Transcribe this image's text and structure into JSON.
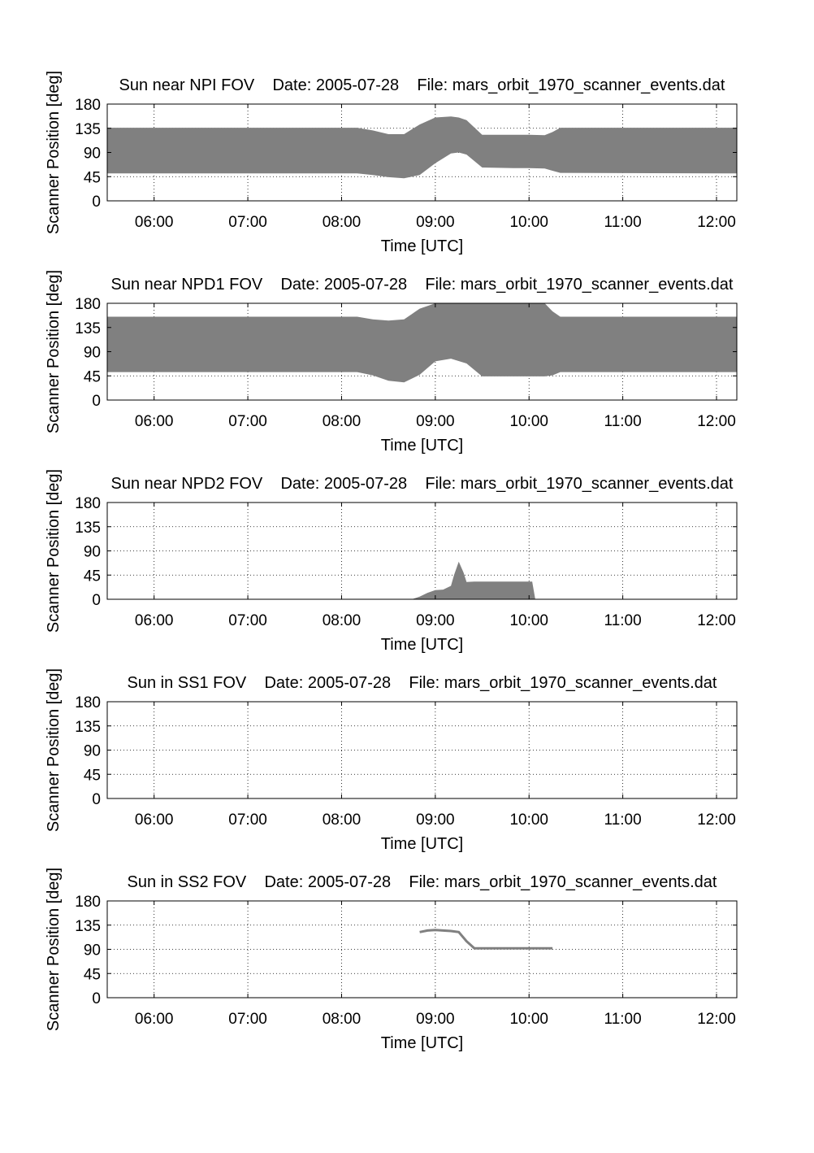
{
  "chart_data": [
    {
      "type": "area",
      "title": "Sun near NPI FOV    Date: 2005-07-28    File: mars_orbit_1970_scanner_events.dat",
      "xlabel": "Time [UTC]",
      "ylabel": "Scanner Position [deg]",
      "xticks": [
        "06:00",
        "07:00",
        "08:00",
        "09:00",
        "10:00",
        "11:00",
        "12:00"
      ],
      "yticks": [
        0,
        45,
        90,
        135,
        180
      ],
      "xlim": [
        "05:30",
        "12:13"
      ],
      "ylim": [
        0,
        180
      ],
      "grid": true,
      "series_color": "#808080",
      "series": [
        {
          "x": [
            "05:30",
            "08:10",
            "08:20",
            "08:30",
            "08:40",
            "08:50",
            "09:00",
            "09:10",
            "09:15",
            "09:20",
            "09:30",
            "09:50",
            "10:00",
            "10:10",
            "10:15",
            "10:20",
            "12:13"
          ],
          "lower": [
            51,
            51,
            48,
            44,
            42,
            48,
            70,
            88,
            90,
            86,
            62,
            61,
            61,
            60,
            56,
            52,
            51
          ],
          "upper": [
            136,
            136,
            131,
            124,
            124,
            142,
            155,
            157,
            155,
            150,
            123,
            123,
            123,
            122,
            128,
            136,
            136
          ]
        }
      ]
    },
    {
      "type": "area",
      "title": "Sun near NPD1 FOV    Date: 2005-07-28    File: mars_orbit_1970_scanner_events.dat",
      "xlabel": "Time [UTC]",
      "ylabel": "Scanner Position [deg]",
      "xticks": [
        "06:00",
        "07:00",
        "08:00",
        "09:00",
        "10:00",
        "11:00",
        "12:00"
      ],
      "yticks": [
        0,
        45,
        90,
        135,
        180
      ],
      "xlim": [
        "05:30",
        "12:13"
      ],
      "ylim": [
        0,
        180
      ],
      "grid": true,
      "series_color": "#808080",
      "series": [
        {
          "x": [
            "05:30",
            "08:10",
            "08:20",
            "08:30",
            "08:40",
            "08:50",
            "09:00",
            "09:10",
            "09:20",
            "09:30",
            "09:50",
            "10:00",
            "10:10",
            "10:15",
            "10:20",
            "12:13"
          ],
          "lower": [
            52,
            52,
            46,
            36,
            33,
            47,
            72,
            77,
            68,
            44,
            44,
            44,
            44,
            46,
            52,
            52
          ],
          "upper": [
            155,
            155,
            150,
            148,
            150,
            170,
            180,
            180,
            180,
            180,
            180,
            180,
            180,
            165,
            155,
            155
          ]
        }
      ]
    },
    {
      "type": "area",
      "title": "Sun near NPD2 FOV    Date: 2005-07-28    File: mars_orbit_1970_scanner_events.dat",
      "xlabel": "Time [UTC]",
      "ylabel": "Scanner Position [deg]",
      "xticks": [
        "06:00",
        "07:00",
        "08:00",
        "09:00",
        "10:00",
        "11:00",
        "12:00"
      ],
      "yticks": [
        0,
        45,
        90,
        135,
        180
      ],
      "xlim": [
        "05:30",
        "12:13"
      ],
      "ylim": [
        0,
        180
      ],
      "grid": true,
      "series_color": "#808080",
      "series": [
        {
          "x": [
            "08:45",
            "08:50",
            "08:55",
            "09:00",
            "09:05",
            "09:10",
            "09:12",
            "09:15",
            "09:18",
            "09:20",
            "09:25",
            "09:30",
            "10:00",
            "10:02",
            "10:04"
          ],
          "lower": [
            0,
            0,
            0,
            0,
            0,
            0,
            0,
            0,
            0,
            0,
            0,
            0,
            0,
            0,
            0
          ],
          "upper": [
            0,
            5,
            12,
            17,
            18,
            25,
            45,
            70,
            50,
            32,
            33,
            33,
            33,
            33,
            0
          ]
        }
      ]
    },
    {
      "type": "area",
      "title": "Sun in SS1 FOV    Date: 2005-07-28    File: mars_orbit_1970_scanner_events.dat",
      "xlabel": "Time [UTC]",
      "ylabel": "Scanner Position [deg]",
      "xticks": [
        "06:00",
        "07:00",
        "08:00",
        "09:00",
        "10:00",
        "11:00",
        "12:00"
      ],
      "yticks": [
        0,
        45,
        90,
        135,
        180
      ],
      "xlim": [
        "05:30",
        "12:13"
      ],
      "ylim": [
        0,
        180
      ],
      "grid": true,
      "series_color": "#808080",
      "series": []
    },
    {
      "type": "line",
      "title": "Sun in SS2 FOV    Date: 2005-07-28    File: mars_orbit_1970_scanner_events.dat",
      "xlabel": "Time [UTC]",
      "ylabel": "Scanner Position [deg]",
      "xticks": [
        "06:00",
        "07:00",
        "08:00",
        "09:00",
        "10:00",
        "11:00",
        "12:00"
      ],
      "yticks": [
        0,
        45,
        90,
        135,
        180
      ],
      "xlim": [
        "05:30",
        "12:13"
      ],
      "ylim": [
        0,
        180
      ],
      "grid": true,
      "series_color": "#808080",
      "series": [
        {
          "x": [
            "08:50",
            "08:55",
            "09:00",
            "09:05",
            "09:10",
            "09:15",
            "09:20",
            "09:25",
            "09:30",
            "10:00",
            "10:15"
          ],
          "y": [
            122,
            125,
            126,
            125,
            124,
            122,
            105,
            92,
            92,
            92,
            92
          ]
        }
      ]
    }
  ]
}
